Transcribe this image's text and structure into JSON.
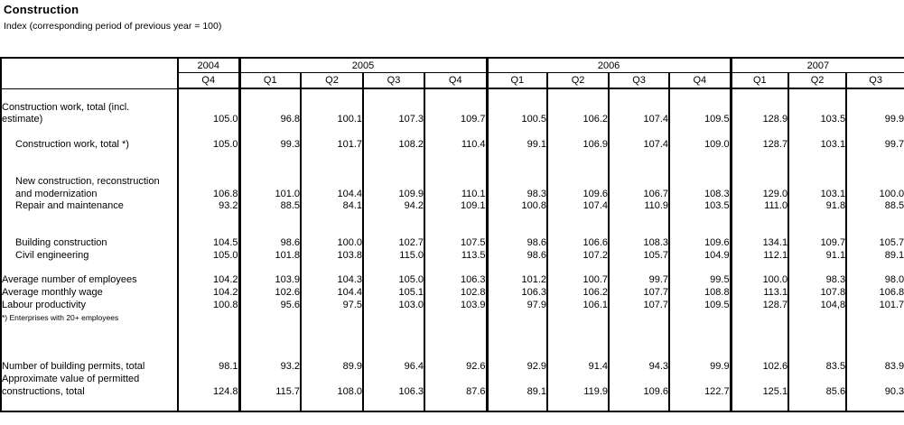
{
  "doc": {
    "title": "Construction",
    "subtitle": "Index (corresponding period of previous year = 100)"
  },
  "table": {
    "year_groups": [
      {
        "label": "2004",
        "quarters": [
          "Q4"
        ]
      },
      {
        "label": "2005",
        "quarters": [
          "Q1",
          "Q2",
          "Q3",
          "Q4"
        ]
      },
      {
        "label": "2006",
        "quarters": [
          "Q1",
          "Q2",
          "Q3",
          "Q4"
        ]
      },
      {
        "label": "2007",
        "quarters": [
          "Q1",
          "Q2",
          "Q3"
        ]
      }
    ],
    "lines": [
      {
        "label": ""
      },
      {
        "label": "Construction work, total (incl.",
        "indent": false
      },
      {
        "label": "estimate)",
        "indent": false,
        "values": [
          "105.0",
          "96.8",
          "100.1",
          "107.3",
          "109.7",
          "100.5",
          "106.2",
          "107.4",
          "109.5",
          "128.9",
          "103.5",
          "99.9"
        ]
      },
      {
        "label": ""
      },
      {
        "label": "Construction work, total *)",
        "indent": true,
        "values": [
          "105.0",
          "99.3",
          "101.7",
          "108.2",
          "110.4",
          "99.1",
          "106.9",
          "107.4",
          "109.0",
          "128.7",
          "103.1",
          "99.7"
        ]
      },
      {
        "label": ""
      },
      {
        "label": ""
      },
      {
        "label": "New construction, reconstruction",
        "indent": true
      },
      {
        "label": "and modernization",
        "indent": true,
        "values": [
          "106.8",
          "101.0",
          "104.4",
          "109.9",
          "110.1",
          "98.3",
          "109.6",
          "106.7",
          "108.3",
          "129.0",
          "103.1",
          "100.0"
        ]
      },
      {
        "label": "Repair and maintenance",
        "indent": true,
        "values": [
          "93.2",
          "88.5",
          "84.1",
          "94.2",
          "109.1",
          "100.8",
          "107.4",
          "110.9",
          "103.5",
          "111.0",
          "91.8",
          "88.5"
        ]
      },
      {
        "label": ""
      },
      {
        "label": ""
      },
      {
        "label": "Building construction",
        "indent": true,
        "values": [
          "104.5",
          "98.6",
          "100.0",
          "102.7",
          "107.5",
          "98.6",
          "106.6",
          "108.3",
          "109.6",
          "134.1",
          "109.7",
          "105.7"
        ]
      },
      {
        "label": "Civil engineering",
        "indent": true,
        "values": [
          "105.0",
          "101.8",
          "103.8",
          "115.0",
          "113.5",
          "98.6",
          "107.2",
          "105.7",
          "104.9",
          "112.1",
          "91.1",
          "89.1"
        ]
      },
      {
        "label": ""
      },
      {
        "label": "Average number of employees",
        "indent": false,
        "values": [
          "104.2",
          "103.9",
          "104.3",
          "105.0",
          "106.3",
          "101.2",
          "100.7",
          "99.7",
          "99.5",
          "100.0",
          "98.3",
          "98.0"
        ]
      },
      {
        "label": "Average monthly wage",
        "indent": false,
        "values": [
          "104.2",
          "102.6",
          "104.4",
          "105.1",
          "102.8",
          "106.3",
          "106.2",
          "107.7",
          "108.8",
          "113.1",
          "107.8",
          "106.8"
        ]
      },
      {
        "label": "Labour productivity",
        "indent": false,
        "values": [
          "100.8",
          "95.6",
          "97.5",
          "103.0",
          "103.9",
          "97.9",
          "106.1",
          "107.7",
          "109.5",
          "128.7",
          "104,8",
          "101.7"
        ]
      },
      {
        "label": "*) Enterprises with 20+ employees",
        "indent": false,
        "small": true
      },
      {
        "label": ""
      },
      {
        "label": ""
      },
      {
        "label": ""
      },
      {
        "label": "Number of building permits, total",
        "indent": false,
        "values": [
          "98.1",
          "93.2",
          "89.9",
          "96.4",
          "92.6",
          "92.9",
          "91.4",
          "94.3",
          "99.9",
          "102.6",
          "83.5",
          "83.9"
        ]
      },
      {
        "label": "Approximate value of permitted",
        "indent": false
      },
      {
        "label": "constructions, total",
        "indent": false,
        "values": [
          "124.8",
          "115.7",
          "108.0",
          "106.3",
          "87.6",
          "89.1",
          "119.9",
          "109.6",
          "122.7",
          "125.1",
          "85.6",
          "90.3"
        ]
      },
      {
        "label": ""
      }
    ]
  }
}
